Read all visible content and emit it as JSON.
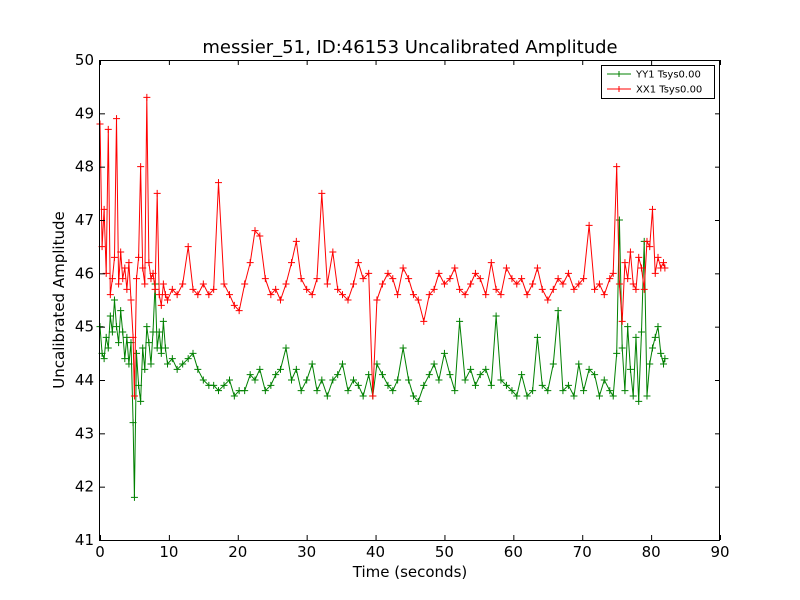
{
  "chart_data": {
    "type": "line",
    "title": "messier_51, ID:46153 Uncalibrated Amplitude",
    "xlabel": "Time (seconds)",
    "ylabel": "Uncalibrated Amplitude",
    "xlim": [
      0,
      90
    ],
    "ylim": [
      41,
      50
    ],
    "xticks": [
      0,
      10,
      20,
      30,
      40,
      50,
      60,
      70,
      80,
      90
    ],
    "yticks": [
      41,
      42,
      43,
      44,
      45,
      46,
      47,
      48,
      49,
      50
    ],
    "grid": false,
    "legend": {
      "placement": "top-right"
    },
    "marker": "+",
    "series": [
      {
        "name": "YY1 Tsys0.00",
        "color": "#008000",
        "x": [
          0,
          0.3,
          0.6,
          0.9,
          1.2,
          1.5,
          1.8,
          2.1,
          2.4,
          2.7,
          3.0,
          3.3,
          3.6,
          3.9,
          4.2,
          4.5,
          4.8,
          5.0,
          5.3,
          5.6,
          5.9,
          6.2,
          6.5,
          6.8,
          7.1,
          7.4,
          7.7,
          8.0,
          8.3,
          8.6,
          8.9,
          9.2,
          9.5,
          9.8,
          10.5,
          11.2,
          12.0,
          12.8,
          13.5,
          14.2,
          15.0,
          15.8,
          16.5,
          17.2,
          18.0,
          18.8,
          19.5,
          20.2,
          21.0,
          21.8,
          22.5,
          23.2,
          24.0,
          24.8,
          25.5,
          26.2,
          27.0,
          27.8,
          28.5,
          29.2,
          30.0,
          30.8,
          31.5,
          32.2,
          33.0,
          33.8,
          34.5,
          35.2,
          36.0,
          36.8,
          37.5,
          38.2,
          39.0,
          39.6,
          40.2,
          41.0,
          41.8,
          42.5,
          43.2,
          44.0,
          44.8,
          45.5,
          46.2,
          47.0,
          47.8,
          48.5,
          49.2,
          50.0,
          50.8,
          51.5,
          52.2,
          53.0,
          53.8,
          54.5,
          55.2,
          56.0,
          56.8,
          57.5,
          58.2,
          59.0,
          59.8,
          60.5,
          61.2,
          62.0,
          62.8,
          63.5,
          64.2,
          65.0,
          65.8,
          66.5,
          67.2,
          68.0,
          68.8,
          69.5,
          70.2,
          71.0,
          71.8,
          72.5,
          73.2,
          74.0,
          74.5,
          75.0,
          75.4,
          75.8,
          76.2,
          76.6,
          77.0,
          77.4,
          77.8,
          78.2,
          78.6,
          79.0,
          79.4,
          79.8,
          80.2,
          80.6,
          81.0,
          81.4,
          81.8,
          82.0
        ],
        "y": [
          45.0,
          44.5,
          44.4,
          44.8,
          44.6,
          45.2,
          44.9,
          45.5,
          45.0,
          44.7,
          45.3,
          44.9,
          44.4,
          44.8,
          44.3,
          44.7,
          43.2,
          41.8,
          44.5,
          43.9,
          43.6,
          44.6,
          44.2,
          45.0,
          44.7,
          44.3,
          44.9,
          45.8,
          44.6,
          44.9,
          44.5,
          45.1,
          44.6,
          44.3,
          44.4,
          44.2,
          44.3,
          44.4,
          44.5,
          44.2,
          44.0,
          43.9,
          43.9,
          43.8,
          43.9,
          44.0,
          43.7,
          43.8,
          43.8,
          44.1,
          44.0,
          44.2,
          43.8,
          43.9,
          44.1,
          44.2,
          44.6,
          44.0,
          44.2,
          43.8,
          44.0,
          44.3,
          43.8,
          44.0,
          43.7,
          44.0,
          44.1,
          44.3,
          43.8,
          44.0,
          43.9,
          43.7,
          44.1,
          43.7,
          44.3,
          44.1,
          43.9,
          43.8,
          44.0,
          44.6,
          44.0,
          43.7,
          43.6,
          43.9,
          44.1,
          44.3,
          44.0,
          44.5,
          44.1,
          43.8,
          45.1,
          44.0,
          44.2,
          43.9,
          44.1,
          44.2,
          43.9,
          45.2,
          44.0,
          43.9,
          43.8,
          43.7,
          44.1,
          43.7,
          43.8,
          44.8,
          43.9,
          43.8,
          44.3,
          45.3,
          43.8,
          43.9,
          43.7,
          44.3,
          43.8,
          44.2,
          44.1,
          43.7,
          44.0,
          43.8,
          43.7,
          44.5,
          47.0,
          44.6,
          43.8,
          45.0,
          44.2,
          43.7,
          44.8,
          43.6,
          44.9,
          46.6,
          43.7,
          44.3,
          44.6,
          44.8,
          45.0,
          44.5,
          44.3,
          44.4
        ]
      },
      {
        "name": "XX1 Tsys0.00",
        "color": "#ff0000",
        "x": [
          0,
          0.3,
          0.6,
          0.9,
          1.2,
          1.5,
          1.8,
          2.1,
          2.4,
          2.7,
          3.0,
          3.3,
          3.6,
          3.9,
          4.2,
          4.5,
          4.8,
          5.0,
          5.3,
          5.6,
          5.9,
          6.2,
          6.5,
          6.8,
          7.1,
          7.4,
          7.7,
          8.0,
          8.3,
          8.6,
          8.9,
          9.2,
          9.5,
          9.8,
          10.5,
          11.2,
          12.0,
          12.8,
          13.5,
          14.2,
          15.0,
          15.8,
          16.5,
          17.2,
          18.0,
          18.8,
          19.5,
          20.2,
          21.0,
          21.8,
          22.5,
          23.2,
          24.0,
          24.8,
          25.5,
          26.2,
          27.0,
          27.8,
          28.5,
          29.2,
          30.0,
          30.8,
          31.5,
          32.2,
          33.0,
          33.8,
          34.5,
          35.2,
          36.0,
          36.8,
          37.5,
          38.2,
          39.0,
          39.6,
          40.2,
          41.0,
          41.8,
          42.5,
          43.2,
          44.0,
          44.8,
          45.5,
          46.2,
          47.0,
          47.8,
          48.5,
          49.2,
          50.0,
          50.8,
          51.5,
          52.2,
          53.0,
          53.8,
          54.5,
          55.2,
          56.0,
          56.8,
          57.5,
          58.2,
          59.0,
          59.8,
          60.5,
          61.2,
          62.0,
          62.8,
          63.5,
          64.2,
          65.0,
          65.8,
          66.5,
          67.2,
          68.0,
          68.8,
          69.5,
          70.2,
          71.0,
          71.8,
          72.5,
          73.2,
          74.0,
          74.5,
          75.0,
          75.4,
          75.8,
          76.2,
          76.6,
          77.0,
          77.4,
          77.8,
          78.2,
          78.6,
          79.0,
          79.4,
          79.8,
          80.2,
          80.6,
          81.0,
          81.4,
          81.8,
          82.0
        ],
        "y": [
          48.8,
          46.5,
          47.2,
          46.0,
          48.7,
          45.6,
          45.9,
          46.3,
          48.9,
          45.8,
          46.4,
          45.9,
          46.1,
          45.7,
          46.2,
          45.5,
          44.8,
          43.7,
          45.9,
          46.3,
          48.0,
          46.1,
          45.8,
          49.3,
          46.2,
          45.9,
          46.0,
          45.7,
          47.5,
          45.6,
          45.4,
          45.8,
          45.6,
          45.5,
          45.7,
          45.6,
          45.8,
          46.5,
          45.7,
          45.6,
          45.8,
          45.6,
          45.7,
          47.7,
          45.8,
          45.6,
          45.4,
          45.3,
          45.8,
          46.2,
          46.8,
          46.7,
          45.9,
          45.6,
          45.7,
          45.5,
          45.8,
          46.2,
          46.6,
          45.9,
          45.7,
          45.6,
          45.9,
          47.5,
          45.8,
          46.4,
          45.7,
          45.6,
          45.5,
          45.8,
          46.2,
          45.9,
          46.0,
          43.7,
          45.5,
          45.8,
          46.0,
          45.9,
          45.6,
          46.1,
          45.9,
          45.6,
          45.5,
          45.1,
          45.6,
          45.7,
          46.0,
          45.8,
          45.9,
          46.1,
          45.7,
          45.6,
          45.8,
          46.0,
          45.9,
          45.6,
          46.2,
          45.7,
          45.6,
          46.1,
          45.9,
          45.8,
          45.9,
          45.6,
          45.8,
          46.1,
          45.7,
          45.5,
          45.7,
          45.9,
          45.8,
          46.0,
          45.7,
          45.8,
          45.9,
          46.9,
          45.7,
          45.8,
          45.6,
          45.9,
          46.0,
          48.0,
          45.8,
          45.1,
          46.2,
          45.9,
          46.4,
          45.8,
          45.7,
          46.3,
          46.1,
          45.7,
          46.6,
          46.5,
          47.2,
          46.0,
          46.3,
          46.1,
          46.2,
          46.1
        ]
      }
    ]
  }
}
